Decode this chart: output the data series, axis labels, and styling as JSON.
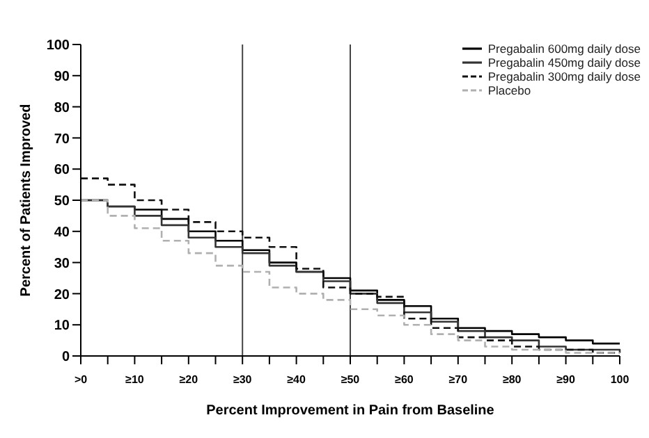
{
  "chart_data": {
    "type": "step",
    "xlabel": "Percent Improvement in Pain from Baseline",
    "ylabel": "Percent of Patients Improved",
    "categories": [
      ">0",
      null,
      "≥10",
      null,
      "≥20",
      null,
      "≥30",
      null,
      "≥40",
      null,
      "≥50",
      null,
      "≥60",
      null,
      "≥70",
      null,
      "≥80",
      null,
      "≥90",
      null,
      "100"
    ],
    "series": [
      {
        "name": "Pregabalin 600mg daily dose",
        "color": "#000000",
        "line_style": "solid",
        "values": [
          50,
          48,
          47,
          44,
          40,
          37,
          34,
          30,
          27,
          25,
          21,
          18,
          16,
          12,
          9,
          8,
          7,
          6,
          5,
          4,
          4
        ]
      },
      {
        "name": "Pregabalin 450mg daily dose",
        "color": "#333333",
        "line_style": "solid",
        "values": [
          50,
          48,
          45,
          42,
          38,
          35,
          33,
          29,
          27,
          24,
          20,
          17,
          14,
          11,
          8,
          6,
          5,
          3,
          2,
          2,
          1
        ]
      },
      {
        "name": "Pregabalin 300mg daily dose",
        "color": "#111111",
        "line_style": "dashed",
        "values": [
          57,
          55,
          50,
          47,
          43,
          40,
          38,
          35,
          28,
          22,
          20,
          19,
          12,
          9,
          6,
          5,
          3,
          2,
          2,
          1,
          1
        ]
      },
      {
        "name": "Placebo",
        "color": "#b0b0b0",
        "line_style": "dashed",
        "values": [
          50,
          45,
          41,
          37,
          33,
          29,
          27,
          22,
          20,
          18,
          15,
          13,
          10,
          7,
          5,
          3,
          2,
          2,
          1,
          1,
          1
        ]
      }
    ],
    "ylim": [
      0,
      100
    ],
    "yticks": [
      0,
      10,
      20,
      30,
      40,
      50,
      60,
      70,
      80,
      90,
      100
    ],
    "ref_lines": [
      {
        "axis": "x",
        "value": "≥30",
        "color": "#444444"
      },
      {
        "axis": "x",
        "value": "≥50",
        "color": "#444444"
      }
    ],
    "grid": false,
    "legend": "top right",
    "marker": "none"
  }
}
